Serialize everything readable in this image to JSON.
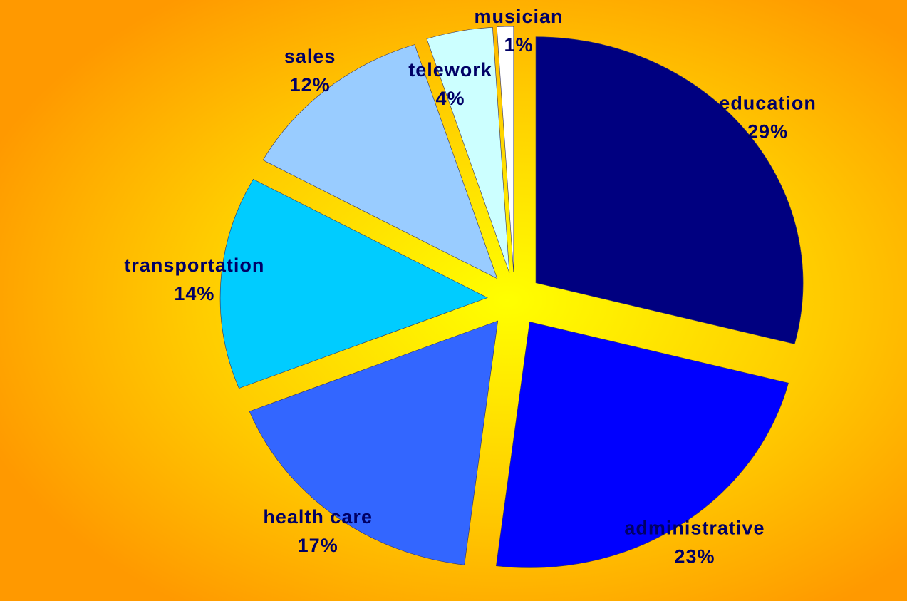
{
  "chart_data": {
    "type": "pie",
    "categories": [
      "education",
      "administrative",
      "health care",
      "transportation",
      "sales",
      "telework",
      "musician"
    ],
    "values": [
      29,
      23,
      17,
      14,
      12,
      4,
      1
    ],
    "value_labels": [
      "29%",
      "23%",
      "17%",
      "14%",
      "12%",
      "4%",
      "1%"
    ],
    "colors": [
      "#000080",
      "#0000ff",
      "#3366ff",
      "#00ccff",
      "#99ccff",
      "#ccffff",
      "#ffffff"
    ]
  }
}
